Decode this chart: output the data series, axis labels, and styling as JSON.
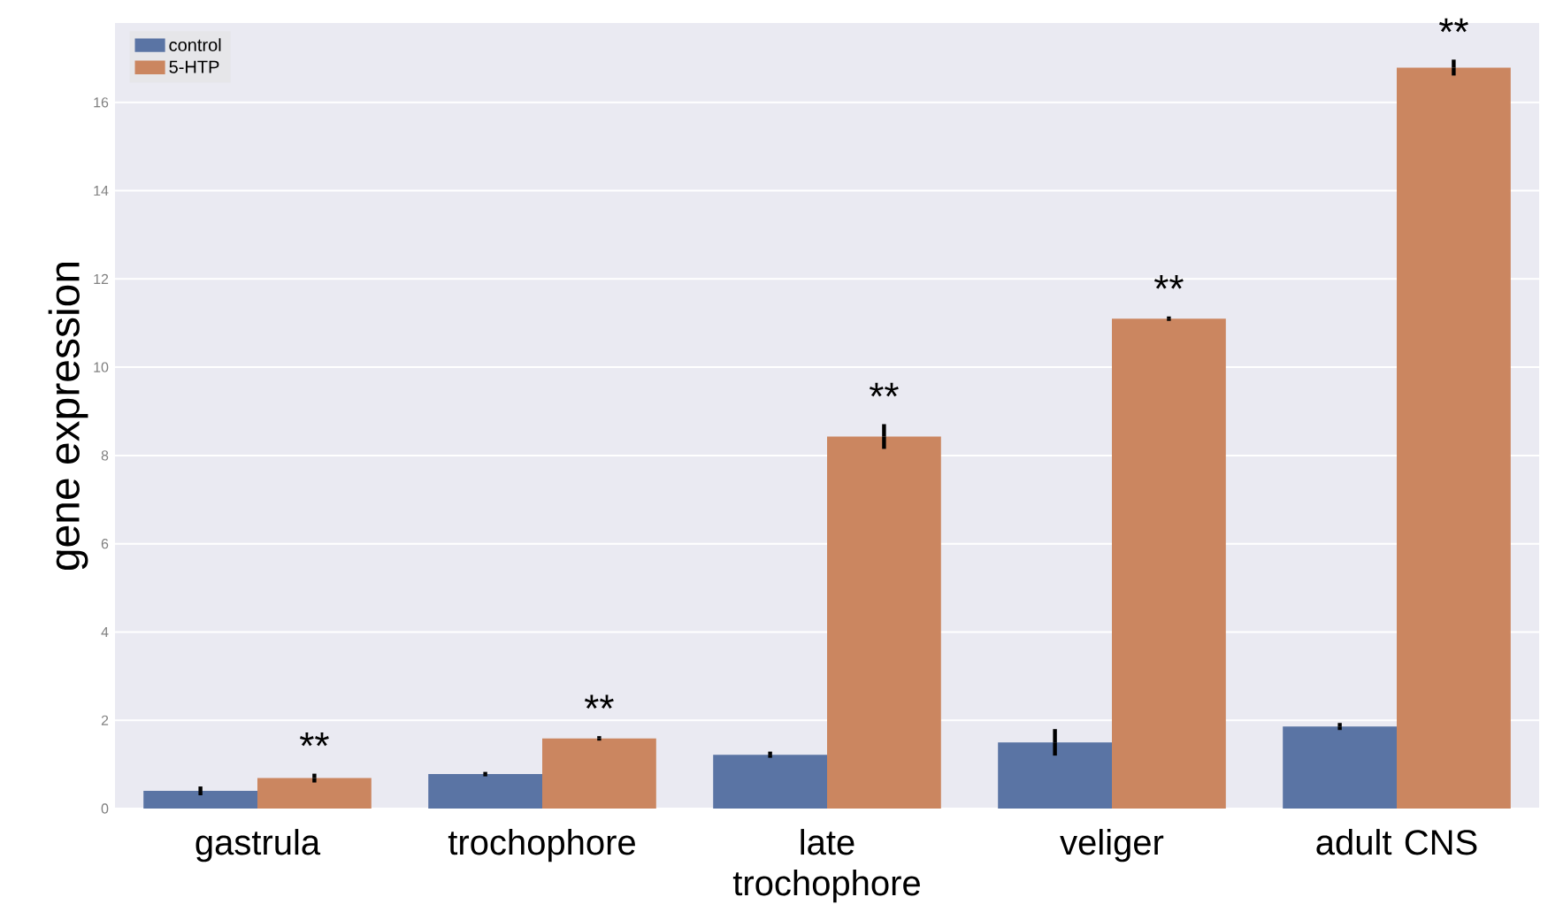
{
  "chart_data": {
    "type": "bar",
    "ylabel": "gene expression",
    "categories": [
      "gastrula",
      "trochophore",
      "late trochophore",
      "veliger",
      "adult CNS"
    ],
    "series": [
      {
        "name": "control",
        "color": "#5a74a4",
        "values": [
          0.4,
          0.78,
          1.22,
          1.5,
          1.86
        ],
        "errors": [
          0.1,
          0.05,
          0.07,
          0.3,
          0.08
        ]
      },
      {
        "name": "5-HTP",
        "color": "#cb8660",
        "values": [
          0.69,
          1.59,
          8.43,
          11.1,
          16.79
        ],
        "errors": [
          0.1,
          0.05,
          0.28,
          0.05,
          0.18
        ]
      }
    ],
    "annotations": [
      "**",
      "**",
      "**",
      "**",
      "**"
    ],
    "ylim": [
      0,
      17.8
    ],
    "yticks": [
      0,
      2,
      4,
      6,
      8,
      10,
      12,
      14,
      16
    ],
    "grid": "y",
    "legend": "top left"
  }
}
